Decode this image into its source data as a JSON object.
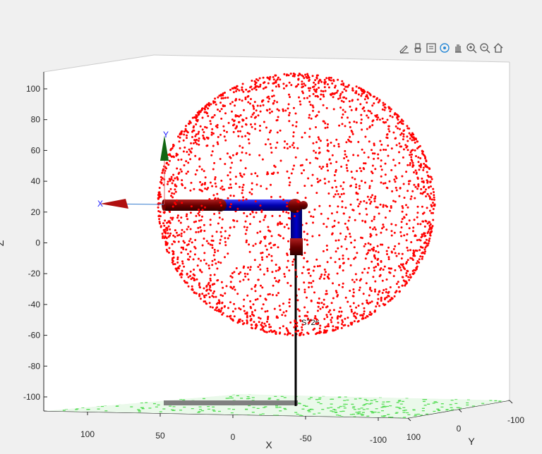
{
  "toolbar": {
    "buttons": [
      {
        "icon": "edit-plot-icon"
      },
      {
        "icon": "brush-icon"
      },
      {
        "icon": "data-tips-icon"
      },
      {
        "icon": "rotate-3d-icon"
      },
      {
        "icon": "pan-icon"
      },
      {
        "icon": "zoom-in-icon"
      },
      {
        "icon": "zoom-out-icon"
      },
      {
        "icon": "home-icon"
      }
    ]
  },
  "chart_data": {
    "type": "scatter",
    "title": "",
    "xlabel": "X",
    "ylabel": "Y",
    "zlabel": "Z",
    "xlim": [
      -100,
      100
    ],
    "ylim": [
      -100,
      100
    ],
    "zlim": [
      -110,
      110
    ],
    "x_ticks": [
      "100",
      "50",
      "0",
      "-50",
      "-100"
    ],
    "y_ticks": [
      "100",
      "0",
      "-100"
    ],
    "z_ticks": [
      "100",
      "80",
      "60",
      "40",
      "20",
      "0",
      "-20",
      "-40",
      "-60",
      "-80",
      "-100"
    ],
    "series": [
      {
        "kind": "point-cloud",
        "color": "#ff0000",
        "shape": "sphere",
        "center": [
          -38,
          0,
          23
        ],
        "radius": 88,
        "approx_point_count": 2500
      }
    ],
    "robot": {
      "base_label": "S726",
      "frame_axis_labels": [
        "X",
        "Y"
      ],
      "link_colors": {
        "base": "#000000",
        "joint": "#6b0000",
        "link": "#0000cc"
      }
    },
    "floor_color": "#55dd55"
  },
  "colors": {
    "background": "#f0f0f0",
    "axes_background": "#ffffff",
    "points": "#ff0000",
    "axes_line": "#262626"
  }
}
